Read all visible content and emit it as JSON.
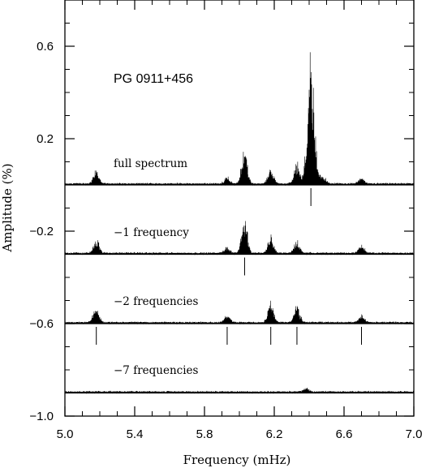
{
  "chart_data": {
    "type": "line",
    "title": "PG 0911+456",
    "xlabel": "Frequency (mHz)",
    "ylabel": "Amplitude (%)",
    "xlim": [
      5.0,
      7.0
    ],
    "ylim": [
      -1.0,
      0.8
    ],
    "x_ticks": [
      "5.0",
      "5.4",
      "5.8",
      "6.2",
      "6.6",
      "7.0"
    ],
    "y_ticks": [
      "0.6",
      "0.2",
      "−0.2",
      "−0.6",
      "−1.0"
    ],
    "grid": false,
    "series": [
      {
        "name": "full spectrum",
        "baseline": 0.0,
        "peaks": [
          {
            "x": 5.18,
            "amp": 0.07
          },
          {
            "x": 5.93,
            "amp": 0.03
          },
          {
            "x": 6.03,
            "amp": 0.18
          },
          {
            "x": 6.18,
            "amp": 0.08
          },
          {
            "x": 6.33,
            "amp": 0.1
          },
          {
            "x": 6.41,
            "amp": 0.62
          },
          {
            "x": 6.48,
            "amp": 0.04
          },
          {
            "x": 6.7,
            "amp": 0.03
          }
        ],
        "markers": [
          6.41
        ]
      },
      {
        "name": "−1 frequency",
        "baseline": -0.3,
        "peaks": [
          {
            "x": 5.18,
            "amp": 0.07
          },
          {
            "x": 5.93,
            "amp": 0.03
          },
          {
            "x": 6.03,
            "amp": 0.18
          },
          {
            "x": 6.18,
            "amp": 0.08
          },
          {
            "x": 6.33,
            "amp": 0.06
          },
          {
            "x": 6.7,
            "amp": 0.04
          }
        ],
        "markers": [
          6.03
        ]
      },
      {
        "name": "−2 frequencies",
        "baseline": -0.6,
        "peaks": [
          {
            "x": 5.18,
            "amp": 0.08
          },
          {
            "x": 5.93,
            "amp": 0.04
          },
          {
            "x": 6.18,
            "amp": 0.1
          },
          {
            "x": 6.33,
            "amp": 0.08
          },
          {
            "x": 6.7,
            "amp": 0.04
          }
        ],
        "markers": [
          5.18,
          5.93,
          6.18,
          6.33,
          6.7
        ]
      },
      {
        "name": "−7 frequencies",
        "baseline": -0.9,
        "peaks": [
          {
            "x": 6.38,
            "amp": 0.02
          }
        ],
        "markers": []
      }
    ]
  }
}
